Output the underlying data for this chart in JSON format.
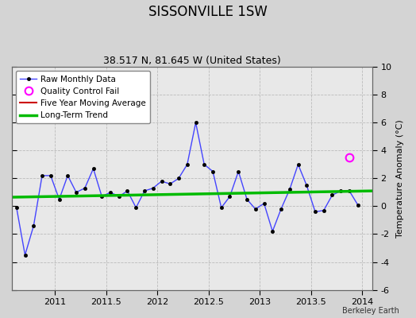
{
  "title": "SISSONVILLE 1SW",
  "subtitle": "38.517 N, 81.645 W (United States)",
  "ylabel": "Temperature Anomaly (°C)",
  "attribution": "Berkeley Earth",
  "ylim": [
    -6,
    10
  ],
  "yticks": [
    -6,
    -4,
    -2,
    0,
    2,
    4,
    6,
    8,
    10
  ],
  "xlim": [
    2010.58,
    2014.1
  ],
  "xticks": [
    2011,
    2011.5,
    2012,
    2012.5,
    2013,
    2013.5,
    2014
  ],
  "xtick_labels": [
    "2011",
    "2011.5",
    "2012",
    "2012.5",
    "2013",
    "2013.5",
    "2014"
  ],
  "fig_bg_color": "#d4d4d4",
  "plot_bg_color": "#e8e8e8",
  "raw_x": [
    2010.625,
    2010.708,
    2010.792,
    2010.875,
    2010.958,
    2011.042,
    2011.125,
    2011.208,
    2011.292,
    2011.375,
    2011.458,
    2011.542,
    2011.625,
    2011.708,
    2011.792,
    2011.875,
    2011.958,
    2012.042,
    2012.125,
    2012.208,
    2012.292,
    2012.375,
    2012.458,
    2012.542,
    2012.625,
    2012.708,
    2012.792,
    2012.875,
    2012.958,
    2013.042,
    2013.125,
    2013.208,
    2013.292,
    2013.375,
    2013.458,
    2013.542,
    2013.625,
    2013.708,
    2013.792,
    2013.875,
    2013.958
  ],
  "raw_y": [
    -0.1,
    -3.5,
    -1.4,
    2.2,
    2.2,
    0.5,
    2.2,
    1.0,
    1.3,
    2.7,
    0.7,
    1.0,
    0.7,
    1.1,
    -0.1,
    1.1,
    1.3,
    1.8,
    1.6,
    2.0,
    3.0,
    6.0,
    3.0,
    2.5,
    -0.1,
    0.7,
    2.5,
    0.5,
    -0.2,
    0.2,
    -1.8,
    -0.2,
    1.2,
    3.0,
    1.5,
    -0.4,
    -0.3,
    0.8,
    1.1,
    1.1,
    0.1
  ],
  "trend_x": [
    2010.58,
    2014.1
  ],
  "trend_y": [
    0.65,
    1.1
  ],
  "qc_x": [
    2013.875
  ],
  "qc_y": [
    3.5
  ],
  "raw_color": "#4444ff",
  "raw_marker_color": "#000000",
  "trend_color": "#00bb00",
  "qc_color": "#ff00ff",
  "moving_avg_color": "#cc0000",
  "grid_color": "#bbbbbb"
}
